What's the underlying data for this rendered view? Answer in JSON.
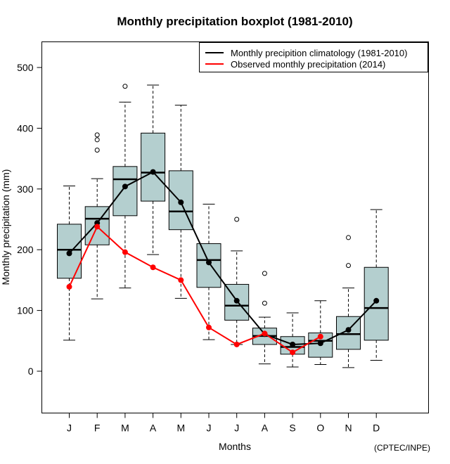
{
  "chart_data": {
    "type": "boxplot",
    "title": "Monthly precipitation boxplot (1981-2010)",
    "xlabel": "Months",
    "ylabel": "Monthly precipitation (mm)",
    "credit": "(CPTEC/INPE)",
    "ylim": [
      -65,
      545
    ],
    "yticks": [
      0,
      100,
      200,
      300,
      400,
      500
    ],
    "categories": [
      "J",
      "F",
      "M",
      "A",
      "M",
      "J",
      "J",
      "A",
      "S",
      "O",
      "N",
      "D"
    ],
    "grid": false,
    "legend_position": "top-right",
    "colors": {
      "box_fill": "#b4cfcf",
      "climatology": "#000000",
      "observed": "#ff0000"
    },
    "boxes": [
      {
        "month": "J",
        "whisker_low": 51,
        "q1": 153,
        "median": 200,
        "q3": 242,
        "whisker_high": 305,
        "outliers": []
      },
      {
        "month": "F",
        "whisker_low": 119,
        "q1": 208,
        "median": 251,
        "q3": 271,
        "whisker_high": 317,
        "outliers": [
          364,
          381,
          389
        ]
      },
      {
        "month": "M",
        "whisker_low": 137,
        "q1": 256,
        "median": 316,
        "q3": 337,
        "whisker_high": 443,
        "outliers": [
          469
        ]
      },
      {
        "month": "A",
        "whisker_low": 192,
        "q1": 280,
        "median": 327,
        "q3": 392,
        "whisker_high": 471,
        "outliers": []
      },
      {
        "month": "M",
        "whisker_low": 120,
        "q1": 233,
        "median": 263,
        "q3": 330,
        "whisker_high": 438,
        "outliers": []
      },
      {
        "month": "J",
        "whisker_low": 52,
        "q1": 138,
        "median": 183,
        "q3": 210,
        "whisker_high": 275,
        "outliers": []
      },
      {
        "month": "J",
        "whisker_low": 44,
        "q1": 84,
        "median": 108,
        "q3": 143,
        "whisker_high": 198,
        "outliers": [
          250
        ]
      },
      {
        "month": "A",
        "whisker_low": 12,
        "q1": 44,
        "median": 58,
        "q3": 71,
        "whisker_high": 89,
        "outliers": [
          112,
          161
        ]
      },
      {
        "month": "S",
        "whisker_low": 7,
        "q1": 28,
        "median": 40,
        "q3": 57,
        "whisker_high": 96,
        "outliers": []
      },
      {
        "month": "O",
        "whisker_low": 11,
        "q1": 23,
        "median": 50,
        "q3": 63,
        "whisker_high": 116,
        "outliers": []
      },
      {
        "month": "N",
        "whisker_low": 6,
        "q1": 36,
        "median": 61,
        "q3": 90,
        "whisker_high": 137,
        "outliers": [
          174,
          220
        ]
      },
      {
        "month": "D",
        "whisker_low": 18,
        "q1": 51,
        "median": 104,
        "q3": 171,
        "whisker_high": 266,
        "outliers": []
      }
    ],
    "series": [
      {
        "name": "Monthly precipition climatology (1981-2010)",
        "color": "#000000",
        "values": [
          194,
          244,
          304,
          328,
          278,
          179,
          116,
          61,
          44,
          46,
          68,
          116
        ]
      },
      {
        "name": "Observed monthly precipitation (2014)",
        "color": "#ff0000",
        "values": [
          139,
          238,
          196,
          171,
          150,
          72,
          44,
          62,
          31,
          57,
          null,
          null
        ]
      }
    ]
  }
}
